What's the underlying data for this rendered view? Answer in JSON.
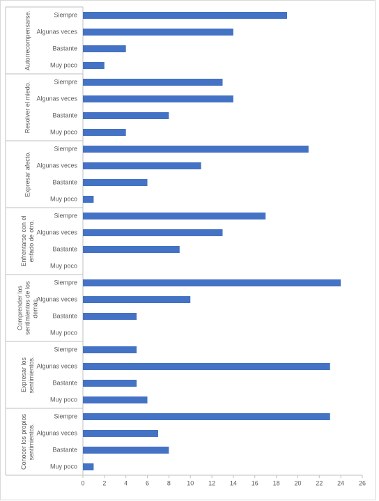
{
  "chart_data": {
    "type": "bar",
    "orientation": "horizontal",
    "color": "#4472c4",
    "groups": [
      {
        "name": "Autorrecompensarse.",
        "categories": [
          "Siempre",
          "Algunas veces",
          "Bastante",
          "Muy poco"
        ],
        "values": [
          19,
          14,
          4,
          2
        ]
      },
      {
        "name": "Resolver el miedo.",
        "categories": [
          "Siempre",
          "Algunas veces",
          "Bastante",
          "Muy poco"
        ],
        "values": [
          13,
          14,
          8,
          4
        ]
      },
      {
        "name": "Expresar afecto.",
        "categories": [
          "Siempre",
          "Algunas veces",
          "Bastante",
          "Muy poco"
        ],
        "values": [
          21,
          11,
          6,
          1
        ]
      },
      {
        "name": "Enfrentarse con el enfado de otro.",
        "categories": [
          "Siempre",
          "Algunas veces",
          "Bastante",
          "Muy poco"
        ],
        "values": [
          17,
          13,
          9,
          0
        ]
      },
      {
        "name": "Comprender los sentimientos de los demás.",
        "categories": [
          "Siempre",
          "Algunas veces",
          "Bastante",
          "Muy poco"
        ],
        "values": [
          24,
          10,
          5,
          0
        ]
      },
      {
        "name": "Expresar los sentimientos.",
        "categories": [
          "Siempre",
          "Algunas veces",
          "Bastante",
          "Muy poco"
        ],
        "values": [
          5,
          23,
          5,
          6
        ]
      },
      {
        "name": "Conocer los propios sentimientos.",
        "categories": [
          "Siempre",
          "Algunas veces",
          "Bastante",
          "Muy poco"
        ],
        "values": [
          23,
          7,
          8,
          1
        ]
      }
    ],
    "xlim": [
      0,
      26
    ],
    "xticks": [
      0,
      2,
      4,
      6,
      8,
      10,
      12,
      14,
      16,
      18,
      20,
      22,
      24,
      26
    ],
    "grid": false
  }
}
